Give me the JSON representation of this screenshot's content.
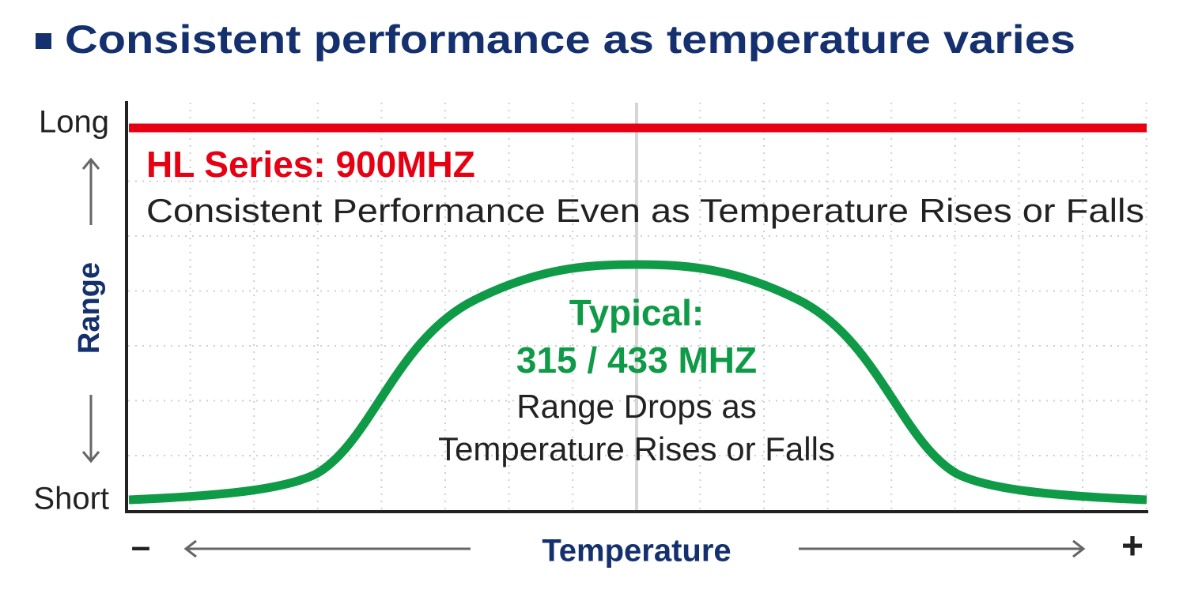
{
  "title": "Consistent performance as temperature varies",
  "y_axis": {
    "label": "Range",
    "top": "Long",
    "bottom": "Short"
  },
  "x_axis": {
    "label": "Temperature",
    "left": "–",
    "right": "+"
  },
  "annotations": {
    "hl": {
      "heading": "HL Series: 900MHZ",
      "text": "Consistent Performance Even as Temperature Rises or Falls"
    },
    "typical": {
      "heading": "Typical:",
      "bands": "315 / 433 MHZ",
      "lines": [
        "Range Drops as",
        "Temperature Rises or Falls"
      ]
    }
  }
}
